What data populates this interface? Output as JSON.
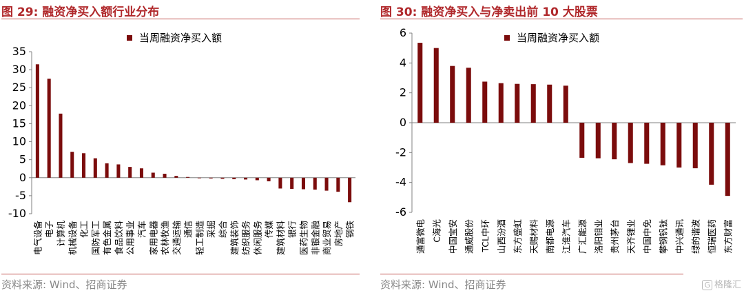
{
  "chart_data": [
    {
      "type": "bar",
      "title": "图 29:  融资净买入额行业分布",
      "legend": "当周融资净买入额",
      "legend_position": "top-center",
      "grid": false,
      "ylim": [
        -10,
        35
      ],
      "yticks": [
        35,
        30,
        25,
        20,
        15,
        10,
        5,
        0,
        -5,
        -10
      ],
      "bar_color": "#7b0c0c",
      "categories": [
        "电气设备",
        "电子",
        "计算机",
        "机械设备",
        "化工",
        "国防军工",
        "有色金属",
        "食品饮料",
        "公用事业",
        "汽车",
        "家用电器",
        "农林牧渔",
        "交通运输",
        "通信",
        "轻工制造",
        "采掘",
        "综合",
        "建筑装饰",
        "纺织服务",
        "休闲服务",
        "传媒",
        "建筑材料",
        "银行",
        "医药生物",
        "非银金融",
        "商业贸易",
        "房地产",
        "钢铁"
      ],
      "values": [
        31.5,
        27.5,
        17.8,
        7.2,
        6.8,
        5.4,
        4.0,
        3.7,
        3.0,
        2.6,
        1.4,
        1.1,
        0.5,
        0.2,
        -0.1,
        -0.2,
        -0.3,
        -0.4,
        -0.5,
        -0.7,
        -1.0,
        -3.0,
        -3.1,
        -3.2,
        -3.3,
        -3.6,
        -3.9,
        -6.8
      ]
    },
    {
      "type": "bar",
      "title": "图 30:  融资净买入与净卖出前 10 大股票",
      "legend": "当周融资净买入额",
      "legend_position": "top-center",
      "grid": false,
      "ylim": [
        -6,
        6
      ],
      "yticks": [
        6,
        4,
        2,
        0,
        -2,
        -4,
        -6
      ],
      "bar_color": "#7b0c0c",
      "categories": [
        "通富微电",
        "C海光",
        "中国宝安",
        "通威股份",
        "TCL中环",
        "山西汾酒",
        "东方盛虹",
        "天赐材料",
        "南都电源",
        "江淮汽车",
        "广汇能源",
        "洛阳钼业",
        "贵州茅台",
        "天齐锂业",
        "中国中免",
        "攀钢钒钛",
        "中兴通讯",
        "绿的谐波",
        "恒瑞医药",
        "东方财富"
      ],
      "values": [
        5.35,
        5.0,
        3.8,
        3.68,
        2.75,
        2.65,
        2.6,
        2.58,
        2.55,
        2.48,
        -2.35,
        -2.38,
        -2.45,
        -2.7,
        -2.75,
        -2.85,
        -3.0,
        -3.05,
        -4.15,
        -4.9
      ]
    }
  ],
  "source_text": "资料来源:  Wind、招商证券",
  "watermark": {
    "box": "G",
    "text": "格隆汇"
  }
}
